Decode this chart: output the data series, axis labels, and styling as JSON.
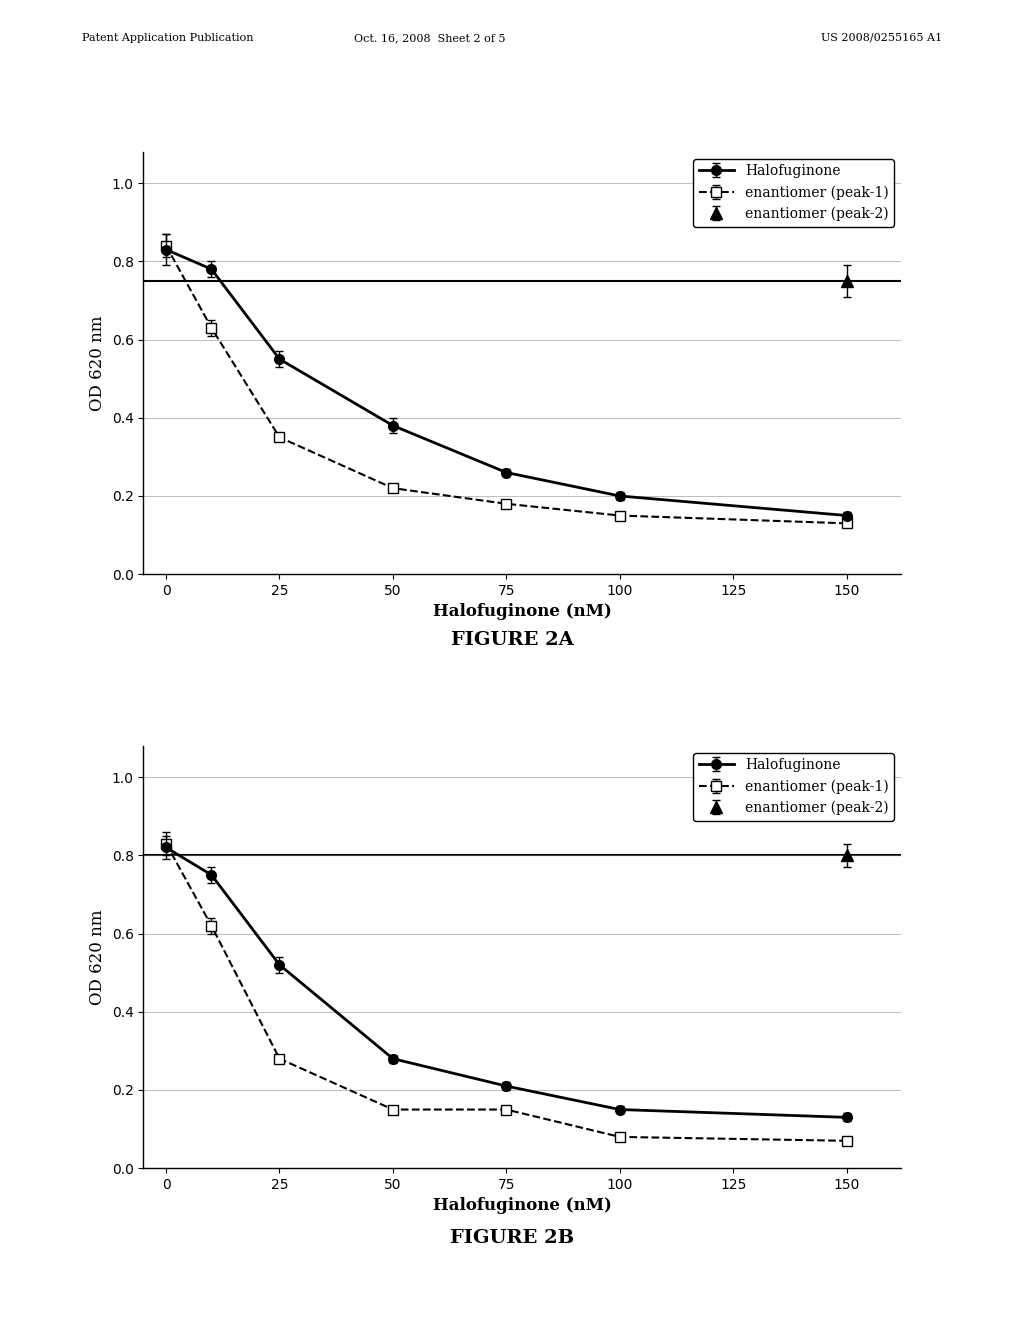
{
  "fig_width": 10.24,
  "fig_height": 13.2,
  "background_color": "#ffffff",
  "header_left": "Patent Application Publication",
  "header_mid": "Oct. 16, 2008  Sheet 2 of 5",
  "header_right": "US 2008/0255165 A1",
  "figure_labels": [
    "FIGURE 2A",
    "FIGURE 2B"
  ],
  "xlabel": "Halofuginone (nM)",
  "ylabel": "OD 620 nm",
  "xticks": [
    0,
    25,
    50,
    75,
    100,
    125,
    150
  ],
  "yticks": [
    0,
    0.2,
    0.4,
    0.6,
    0.8,
    1
  ],
  "ylim": [
    0,
    1.08
  ],
  "xlim": [
    -5,
    162
  ],
  "legend_labels": [
    "Halofuginone",
    "enantiomer (peak-1)",
    "enantiomer (peak-2)"
  ],
  "chart_A": {
    "halofuginone_x": [
      0,
      10,
      25,
      50,
      75,
      100,
      150
    ],
    "halofuginone_y": [
      0.83,
      0.78,
      0.55,
      0.38,
      0.26,
      0.2,
      0.15
    ],
    "halofuginone_err": [
      0.04,
      0.02,
      0.02,
      0.02,
      0.01,
      0.01,
      0.01
    ],
    "peak1_x": [
      0,
      10,
      25,
      50,
      75,
      100,
      150
    ],
    "peak1_y": [
      0.84,
      0.63,
      0.35,
      0.22,
      0.18,
      0.15,
      0.13
    ],
    "peak1_err": [
      0.03,
      0.02,
      0.01,
      0.01,
      0.01,
      0.01,
      0.01
    ],
    "peak2_x": [
      150
    ],
    "peak2_y": [
      0.75
    ],
    "peak2_err": [
      0.04
    ],
    "peak2_line_y": 0.75
  },
  "chart_B": {
    "halofuginone_x": [
      0,
      10,
      25,
      50,
      75,
      100,
      150
    ],
    "halofuginone_y": [
      0.82,
      0.75,
      0.52,
      0.28,
      0.21,
      0.15,
      0.13
    ],
    "halofuginone_err": [
      0.03,
      0.02,
      0.02,
      0.01,
      0.01,
      0.01,
      0.01
    ],
    "peak1_x": [
      0,
      10,
      25,
      50,
      75,
      100,
      150
    ],
    "peak1_y": [
      0.83,
      0.62,
      0.28,
      0.15,
      0.15,
      0.08,
      0.07
    ],
    "peak1_err": [
      0.03,
      0.02,
      0.01,
      0.01,
      0.01,
      0.01,
      0.01
    ],
    "peak2_x": [
      150
    ],
    "peak2_y": [
      0.8
    ],
    "peak2_err": [
      0.03
    ],
    "peak2_line_y": 0.8
  }
}
